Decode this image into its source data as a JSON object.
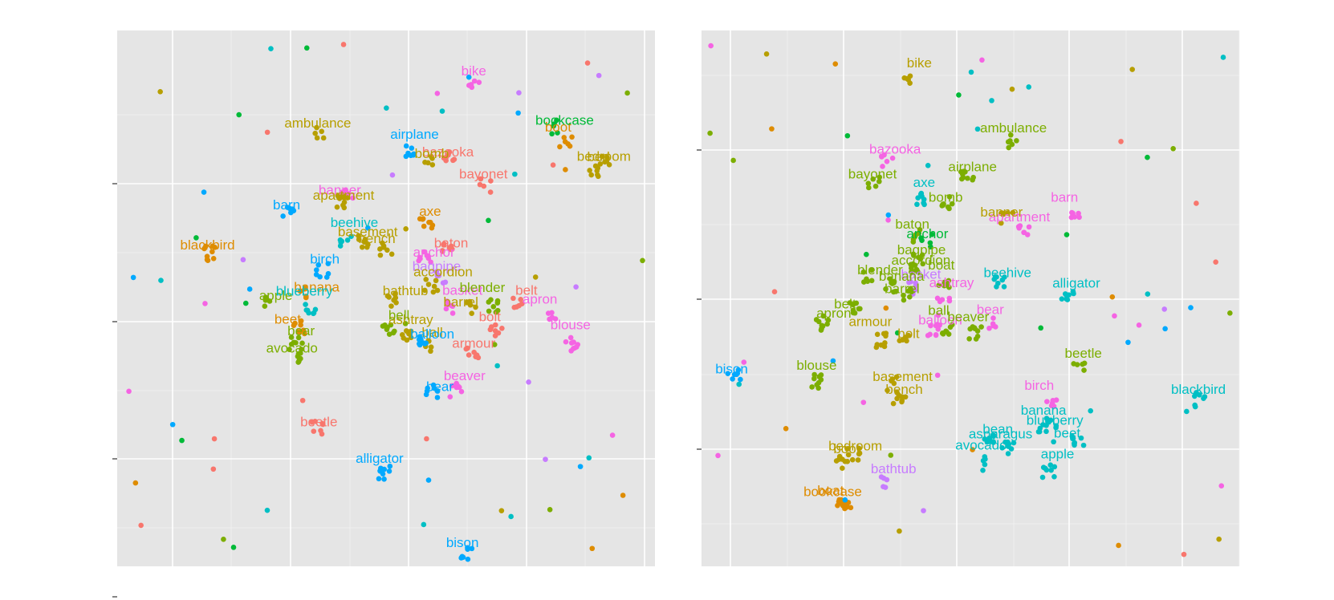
{
  "chart_data": [
    {
      "type": "scatter",
      "title": "",
      "xlabel": "",
      "ylabel": "",
      "xlim": [
        0,
        100
      ],
      "ylim": [
        0,
        100
      ],
      "grid": true,
      "legend": "none",
      "series": [
        {
          "color": "#F8766D",
          "labels": [
            {
              "text": "bazooka",
              "x": 61.5,
              "y": 77.4
            },
            {
              "text": "bayonet",
              "x": 68.1,
              "y": 73.3
            },
            {
              "text": "baton",
              "x": 62.1,
              "y": 60.4
            },
            {
              "text": "bolt",
              "x": 69.3,
              "y": 46.6
            },
            {
              "text": "armour",
              "x": 66.3,
              "y": 41.7
            },
            {
              "text": "belt",
              "x": 76.1,
              "y": 51.6
            },
            {
              "text": "beetle",
              "x": 37.5,
              "y": 27.0
            }
          ]
        },
        {
          "color": "#F564E3",
          "labels": [
            {
              "text": "bike",
              "x": 66.3,
              "y": 92.5
            },
            {
              "text": "anchor",
              "x": 58.9,
              "y": 58.7
            },
            {
              "text": "basket",
              "x": 64.2,
              "y": 51.6
            },
            {
              "text": "apron",
              "x": 78.6,
              "y": 49.9
            },
            {
              "text": "blouse",
              "x": 84.3,
              "y": 45.1
            },
            {
              "text": "beaver",
              "x": 64.6,
              "y": 35.6
            },
            {
              "text": "banner",
              "x": 41.4,
              "y": 70.3
            }
          ]
        },
        {
          "color": "#C77CFF",
          "labels": [
            {
              "text": "bagpipe",
              "x": 59.4,
              "y": 56.1
            }
          ]
        },
        {
          "color": "#B79F00",
          "labels": [
            {
              "text": "ambulance",
              "x": 37.3,
              "y": 82.8
            },
            {
              "text": "apartment",
              "x": 42.1,
              "y": 69.3
            },
            {
              "text": "basement",
              "x": 46.6,
              "y": 62.5
            },
            {
              "text": "bench",
              "x": 48.3,
              "y": 61.2
            },
            {
              "text": "bomb",
              "x": 58.5,
              "y": 77.1
            },
            {
              "text": "accordion",
              "x": 60.6,
              "y": 55.0
            },
            {
              "text": "bathtub",
              "x": 53.6,
              "y": 51.5
            },
            {
              "text": "barrel",
              "x": 63.9,
              "y": 49.4
            },
            {
              "text": "ashtray",
              "x": 54.6,
              "y": 46.1
            },
            {
              "text": "ball",
              "x": 58.6,
              "y": 43.7
            },
            {
              "text": "bedroom",
              "x": 90.5,
              "y": 76.6
            },
            {
              "text": "bed",
              "x": 89.5,
              "y": 76.5
            }
          ]
        },
        {
          "color": "#DE8C00",
          "labels": [
            {
              "text": "blackbird",
              "x": 16.8,
              "y": 60.0
            },
            {
              "text": "banana",
              "x": 37.1,
              "y": 52.2
            },
            {
              "text": "beet",
              "x": 31.7,
              "y": 46.2
            },
            {
              "text": "axe",
              "x": 58.2,
              "y": 66.3
            },
            {
              "text": "boot",
              "x": 82.0,
              "y": 82.0
            }
          ]
        },
        {
          "color": "#7CAE00",
          "labels": [
            {
              "text": "apple",
              "x": 29.5,
              "y": 50.6
            },
            {
              "text": "bear",
              "x": 34.2,
              "y": 44.0
            },
            {
              "text": "avocado",
              "x": 32.5,
              "y": 40.8
            },
            {
              "text": "blender",
              "x": 67.9,
              "y": 52.1
            },
            {
              "text": "bell",
              "x": 52.4,
              "y": 46.9
            }
          ]
        },
        {
          "color": "#00BA38",
          "labels": [
            {
              "text": "bookcase",
              "x": 83.2,
              "y": 83.3
            }
          ]
        },
        {
          "color": "#00BFC4",
          "labels": [
            {
              "text": "beehive",
              "x": 44.1,
              "y": 64.2
            },
            {
              "text": "blueberry",
              "x": 34.8,
              "y": 51.4
            }
          ]
        },
        {
          "color": "#00A9FF",
          "labels": [
            {
              "text": "airplane",
              "x": 55.3,
              "y": 80.7
            },
            {
              "text": "barn",
              "x": 31.5,
              "y": 67.5
            },
            {
              "text": "birch",
              "x": 38.6,
              "y": 57.4
            },
            {
              "text": "balloon",
              "x": 58.6,
              "y": 43.4
            },
            {
              "text": "bear",
              "x": 60.0,
              "y": 33.6
            },
            {
              "text": "alligator",
              "x": 48.8,
              "y": 20.2
            },
            {
              "text": "bison",
              "x": 64.2,
              "y": 4.5
            }
          ]
        }
      ]
    },
    {
      "type": "scatter",
      "title": "",
      "xlabel": "",
      "ylabel": "",
      "xlim": [
        0,
        100
      ],
      "ylim": [
        0,
        100
      ],
      "grid": true,
      "legend": "none",
      "series": [
        {
          "color": "#F8766D",
          "labels": []
        },
        {
          "color": "#F564E3",
          "labels": [
            {
              "text": "bazooka",
              "x": 36.0,
              "y": 77.9
            },
            {
              "text": "barn",
              "x": 67.5,
              "y": 68.9
            },
            {
              "text": "apartment",
              "x": 59.1,
              "y": 65.3
            },
            {
              "text": "ashtray",
              "x": 46.5,
              "y": 53.0
            },
            {
              "text": "bear",
              "x": 53.7,
              "y": 48.0
            },
            {
              "text": "balloon",
              "x": 44.4,
              "y": 46.0
            },
            {
              "text": "birch",
              "x": 62.8,
              "y": 33.8
            }
          ]
        },
        {
          "color": "#C77CFF",
          "labels": [
            {
              "text": "basket",
              "x": 40.8,
              "y": 54.6
            },
            {
              "text": "bathtub",
              "x": 35.7,
              "y": 18.3
            }
          ]
        },
        {
          "color": "#B79F00",
          "labels": [
            {
              "text": "bike",
              "x": 40.5,
              "y": 94.0
            },
            {
              "text": "banner",
              "x": 55.8,
              "y": 66.2
            },
            {
              "text": "armour",
              "x": 31.4,
              "y": 45.7
            },
            {
              "text": "basement",
              "x": 37.4,
              "y": 35.5
            },
            {
              "text": "bench",
              "x": 37.7,
              "y": 33.1
            },
            {
              "text": "bedroom",
              "x": 28.6,
              "y": 22.5
            },
            {
              "text": "boot",
              "x": 27.0,
              "y": 22.0
            },
            {
              "text": "bolt",
              "x": 38.5,
              "y": 43.5
            }
          ]
        },
        {
          "color": "#DE8C00",
          "labels": [
            {
              "text": "bookcase",
              "x": 24.4,
              "y": 14.0
            },
            {
              "text": "boat",
              "x": 24.0,
              "y": 14.2
            }
          ]
        },
        {
          "color": "#7CAE00",
          "labels": [
            {
              "text": "ambulance",
              "x": 58.0,
              "y": 81.9
            },
            {
              "text": "bayonet",
              "x": 31.8,
              "y": 73.3
            },
            {
              "text": "airplane",
              "x": 50.4,
              "y": 74.6
            },
            {
              "text": "bomb",
              "x": 45.4,
              "y": 68.9
            },
            {
              "text": "baton",
              "x": 39.2,
              "y": 63.9
            },
            {
              "text": "bagpipe",
              "x": 40.9,
              "y": 59.1
            },
            {
              "text": "accordion",
              "x": 40.8,
              "y": 57.2
            },
            {
              "text": "boat",
              "x": 44.6,
              "y": 56.3
            },
            {
              "text": "blender",
              "x": 33.2,
              "y": 55.4
            },
            {
              "text": "banana",
              "x": 37.2,
              "y": 54.2
            },
            {
              "text": "barrel",
              "x": 37.3,
              "y": 51.9
            },
            {
              "text": "belt",
              "x": 26.7,
              "y": 49.0
            },
            {
              "text": "apron",
              "x": 24.6,
              "y": 47.3
            },
            {
              "text": "ball",
              "x": 44.1,
              "y": 47.8
            },
            {
              "text": "beaver",
              "x": 49.6,
              "y": 46.6
            },
            {
              "text": "blouse",
              "x": 21.4,
              "y": 37.6
            },
            {
              "text": "beetle",
              "x": 71.0,
              "y": 39.8
            }
          ]
        },
        {
          "color": "#00BA38",
          "labels": [
            {
              "text": "anchor",
              "x": 42.0,
              "y": 62.1
            }
          ]
        },
        {
          "color": "#00BFC4",
          "labels": [
            {
              "text": "axe",
              "x": 41.4,
              "y": 71.7
            },
            {
              "text": "beehive",
              "x": 56.9,
              "y": 54.9
            },
            {
              "text": "alligator",
              "x": 69.7,
              "y": 52.9
            },
            {
              "text": "banana",
              "x": 63.6,
              "y": 29.2
            },
            {
              "text": "blueberry",
              "x": 65.7,
              "y": 27.3
            },
            {
              "text": "bean",
              "x": 55.1,
              "y": 25.7
            },
            {
              "text": "asparagus",
              "x": 55.6,
              "y": 24.8
            },
            {
              "text": "beet",
              "x": 68.0,
              "y": 24.9
            },
            {
              "text": "avocado",
              "x": 52.0,
              "y": 22.7
            },
            {
              "text": "apple",
              "x": 66.2,
              "y": 21.0
            },
            {
              "text": "blackbird",
              "x": 92.4,
              "y": 33.1
            }
          ]
        },
        {
          "color": "#00A9FF",
          "labels": [
            {
              "text": "bison",
              "x": 5.6,
              "y": 36.9
            }
          ]
        }
      ]
    }
  ]
}
